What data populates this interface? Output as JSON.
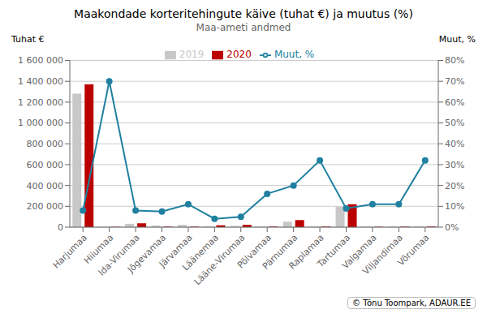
{
  "chart_data": {
    "type": "bar",
    "title": "Maakondade korteritehingute käive (tuhat €) ja muutus (%)",
    "subtitle": "Maa-ameti andmed",
    "ylabel": "Tuhat €",
    "y2label": "Muut, %",
    "annotations": [
      "© Tõnu Toompark, ADAUR.EE"
    ],
    "categories": [
      "Harjumaa",
      "Hiiumaa",
      "Ida-Virumaa",
      "Jõgevamaa",
      "Järvamaa",
      "Läänemaa",
      "Lääne-Virumaa",
      "Põlvamaa",
      "Pärnumaa",
      "Raplamaa",
      "Tartumaa",
      "Valgamaa",
      "Viljandimaa",
      "Võrumaa"
    ],
    "series": [
      {
        "name": "2019",
        "type": "bar",
        "color": "#c8c8c8",
        "values": [
          1280000,
          2000,
          32000,
          15000,
          22000,
          10000,
          12000,
          6000,
          52000,
          6000,
          195000,
          6000,
          8000,
          8000
        ]
      },
      {
        "name": "2020",
        "type": "bar",
        "color": "#bb0000",
        "values": [
          1370000,
          3000,
          37000,
          5000,
          5000,
          18000,
          22000,
          6000,
          68000,
          6000,
          220000,
          4000,
          5000,
          6000
        ]
      },
      {
        "name": "Muut, %",
        "type": "line",
        "axis": "y2",
        "marker": "circle",
        "color": "#2080a0",
        "values": [
          8,
          70,
          8,
          7.5,
          11,
          4,
          5,
          16,
          20,
          32,
          9,
          11,
          11,
          32
        ]
      }
    ],
    "ylim": [
      0,
      1600000
    ],
    "yticks": [
      0,
      {
        "value": 200000,
        "label": "200 000"
      },
      {
        "value": 400000,
        "label": "400 000"
      },
      {
        "value": 600000,
        "label": "600 000"
      },
      {
        "value": 800000,
        "label": "800 000"
      },
      {
        "value": 1000000,
        "label": "1 000 000"
      },
      {
        "value": 1200000,
        "label": "1 200 000"
      },
      {
        "value": 1400000,
        "label": "1 400 000"
      },
      {
        "value": 1600000,
        "label": "1 600 000"
      }
    ],
    "y2lim": [
      0,
      80
    ],
    "y2ticks": [
      {
        "value": 0,
        "label": "0%"
      },
      {
        "value": 10,
        "label": "10%"
      },
      {
        "value": 20,
        "label": "20%"
      },
      {
        "value": 30,
        "label": "30%"
      },
      {
        "value": 40,
        "label": "40%"
      },
      {
        "value": 50,
        "label": "50%"
      },
      {
        "value": 60,
        "label": "60%"
      },
      {
        "value": 70,
        "label": "70%"
      },
      {
        "value": 80,
        "label": "80%"
      }
    ],
    "grid": true,
    "legend": "top"
  }
}
